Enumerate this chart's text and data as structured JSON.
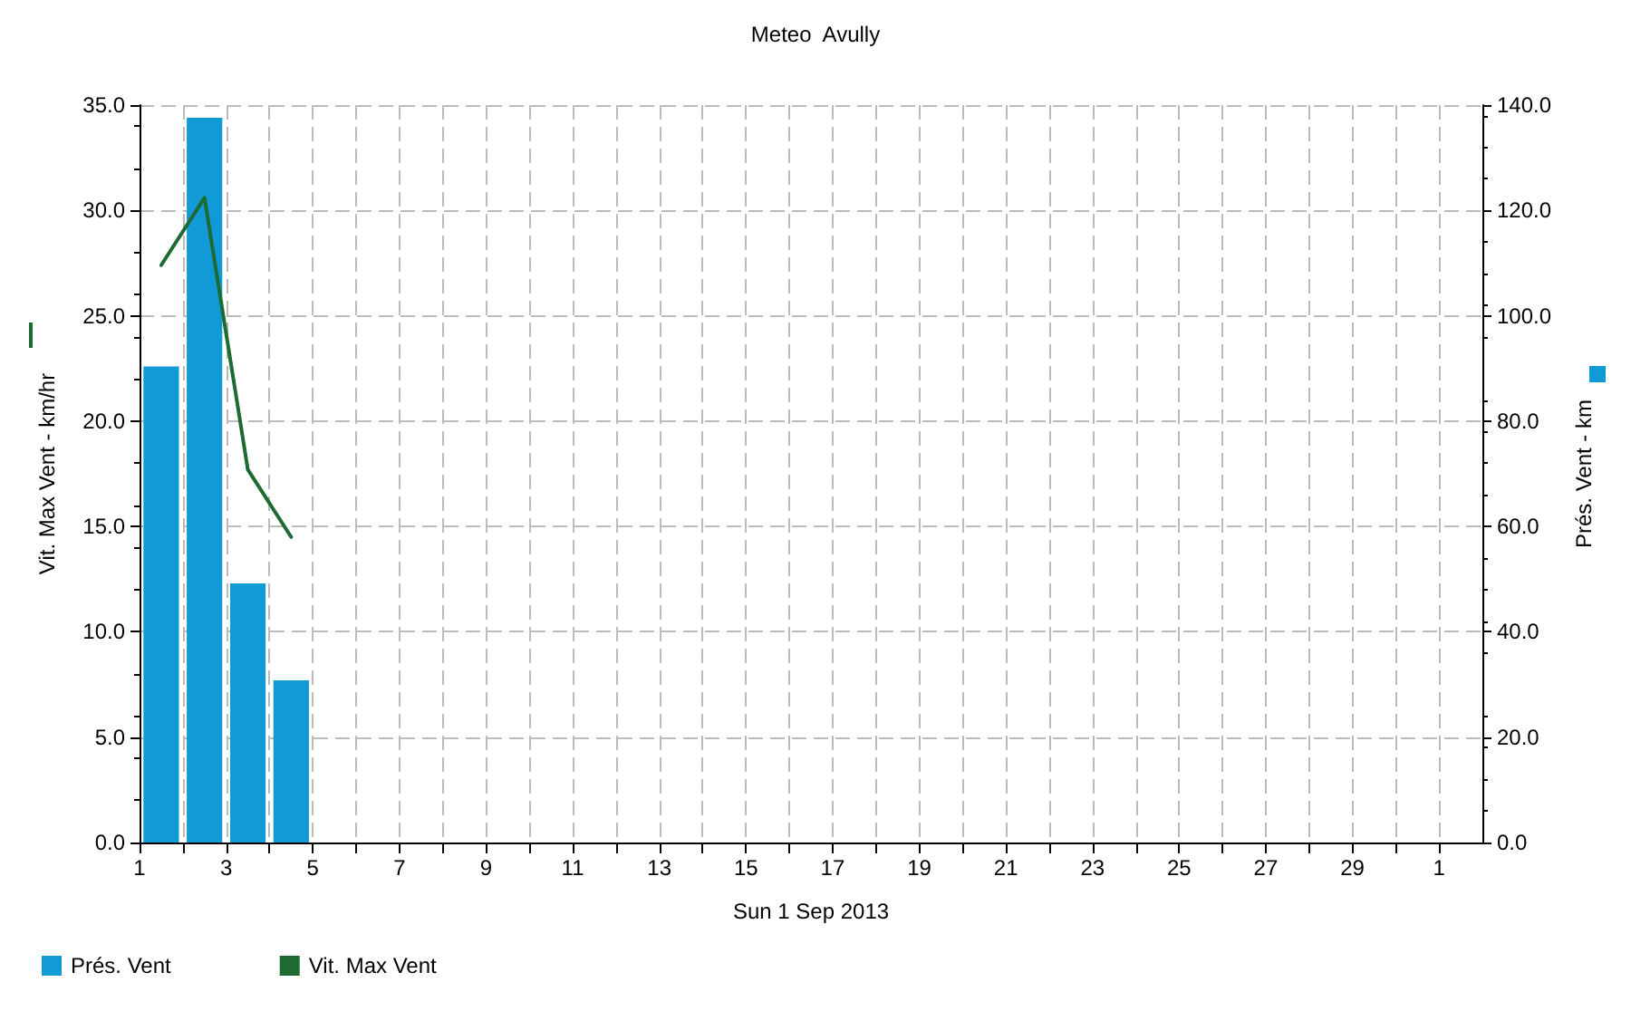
{
  "chart_data": {
    "type": "bar",
    "title": "Meteo  Avully",
    "xlabel": "Sun 1 Sep 2013",
    "ylabel": "Vit. Max Vent - km/hr",
    "y2label": "Prés. Vent - km",
    "x": [
      "2013-09-01T12:00",
      "2013-09-02T12:00",
      "2013-09-03T12:00",
      "2013-09-04T12:00"
    ],
    "series": [
      {
        "name": "Prés. Vent",
        "axis": "y2",
        "color": "#119bd6",
        "values": [
          90.4,
          137.6,
          49.2,
          30.8
        ]
      },
      {
        "name": "Vit. Max Vent",
        "type": "line",
        "axis": "y",
        "color": "#1d6b33",
        "values": [
          27.4,
          30.6,
          17.7,
          14.5
        ]
      }
    ],
    "xlim": [
      "2013-09-01",
      "2013-10-02"
    ],
    "xticks": [
      {
        "value": "2013-09-01",
        "label": "1"
      },
      {
        "value": "2013-09-02",
        "label": null
      },
      {
        "value": "2013-09-03",
        "label": "3"
      },
      {
        "value": "2013-09-04",
        "label": null
      },
      {
        "value": "2013-09-05",
        "label": "5"
      },
      {
        "value": "2013-09-06",
        "label": null
      },
      {
        "value": "2013-09-07",
        "label": "7"
      },
      {
        "value": "2013-09-08",
        "label": null
      },
      {
        "value": "2013-09-09",
        "label": "9"
      },
      {
        "value": "2013-09-10",
        "label": null
      },
      {
        "value": "2013-09-11",
        "label": "11"
      },
      {
        "value": "2013-09-12",
        "label": null
      },
      {
        "value": "2013-09-13",
        "label": "13"
      },
      {
        "value": "2013-09-14",
        "label": null
      },
      {
        "value": "2013-09-15",
        "label": "15"
      },
      {
        "value": "2013-09-16",
        "label": null
      },
      {
        "value": "2013-09-17",
        "label": "17"
      },
      {
        "value": "2013-09-18",
        "label": null
      },
      {
        "value": "2013-09-19",
        "label": "19"
      },
      {
        "value": "2013-09-20",
        "label": null
      },
      {
        "value": "2013-09-21",
        "label": "21"
      },
      {
        "value": "2013-09-22",
        "label": null
      },
      {
        "value": "2013-09-23",
        "label": "23"
      },
      {
        "value": "2013-09-24",
        "label": null
      },
      {
        "value": "2013-09-25",
        "label": "25"
      },
      {
        "value": "2013-09-26",
        "label": null
      },
      {
        "value": "2013-09-27",
        "label": "27"
      },
      {
        "value": "2013-09-28",
        "label": null
      },
      {
        "value": "2013-09-29",
        "label": "29"
      },
      {
        "value": "2013-09-30",
        "label": null
      },
      {
        "value": "2013-10-01",
        "label": "1"
      }
    ],
    "ylim": [
      0,
      35
    ],
    "yticks": [
      {
        "value": 0,
        "label": "0.0"
      },
      {
        "value": 5,
        "label": "5.0"
      },
      {
        "value": 10,
        "label": "10.0"
      },
      {
        "value": 15,
        "label": "15.0"
      },
      {
        "value": 20,
        "label": "20.0"
      },
      {
        "value": 25,
        "label": "25.0"
      },
      {
        "value": 30,
        "label": "30.0"
      },
      {
        "value": 35,
        "label": "35.0"
      }
    ],
    "y2lim": [
      0,
      140
    ],
    "y2ticks": [
      {
        "value": 0,
        "label": "0.0"
      },
      {
        "value": 20,
        "label": "20.0"
      },
      {
        "value": 40,
        "label": "40.0"
      },
      {
        "value": 60,
        "label": "60.0"
      },
      {
        "value": 80,
        "label": "80.0"
      },
      {
        "value": 100,
        "label": "100.0"
      },
      {
        "value": 120,
        "label": "120.0"
      },
      {
        "value": 140,
        "label": "140.0"
      }
    ],
    "grid": true,
    "legend": "bottom left"
  }
}
